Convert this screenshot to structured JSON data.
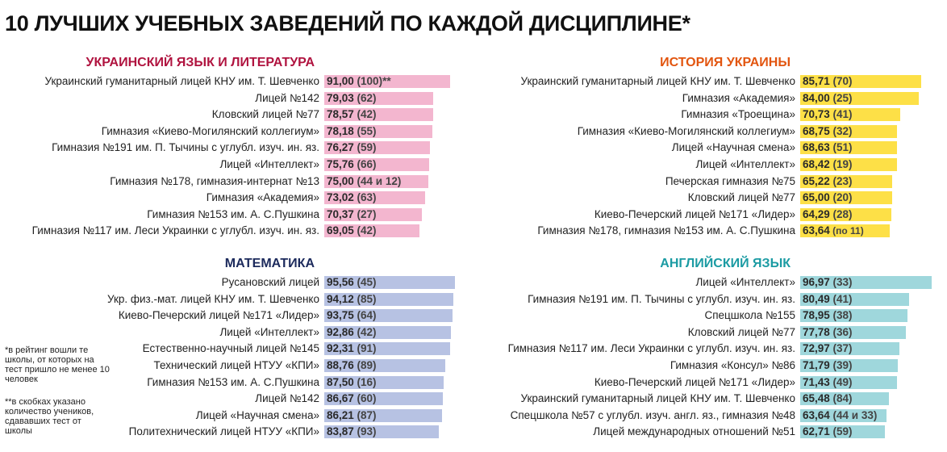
{
  "title": "10 ЛУЧШИХ УЧЕБНЫХ ЗАВЕДЕНИЙ ПО КАЖДОЙ ДИСЦИПЛИНЕ*",
  "footnotes": [
    "*в рейтинг вошли те школы, от которых на тест пришло не менее 10 человек",
    "**в скобках указано количество учеников, сдававших тест от школы"
  ],
  "chart_data": [
    {
      "type": "bar",
      "title": "УКРАИНСКИЙ ЯЗЫК И ЛИТЕРАТУРА",
      "color": "#f3b6cf",
      "title_color": "#b0133f",
      "categories": [
        "Украинский гуманитарный лицей КНУ им. Т. Шевченко",
        "Лицей №142",
        "Кловский лицей №77",
        "Гимназия «Киево-Могилянский коллегиум»",
        "Гимназия №191 им. П. Тычины с углубл. изуч. ин. яз.",
        "Лицей «Интеллект»",
        "Гимназия №178, гимназия-интернат №13",
        "Гимназия «Академия»",
        "Гимназия №153 им. А. С.Пушкина",
        "Гимназия №117 им. Леси Украинки с углубл. изуч. ин. яз."
      ],
      "values": [
        91.0,
        79.03,
        78.57,
        78.18,
        76.27,
        75.76,
        75.0,
        73.02,
        70.37,
        69.05
      ],
      "value_labels": [
        "91,00",
        "79,03",
        "78,57",
        "78,18",
        "76,27",
        "75,76",
        "75,00",
        "73,02",
        "70,37",
        "69,05"
      ],
      "counts": [
        "(100)**",
        "(62)",
        "(42)",
        "(55)",
        "(59)",
        "(66)",
        "(44 и 12)",
        "(63)",
        "(27)",
        "(42)"
      ]
    },
    {
      "type": "bar",
      "title": "ИСТОРИЯ УКРАИНЫ",
      "color": "#fde047",
      "title_color": "#e2550f",
      "categories": [
        "Украинский гуманитарный лицей КНУ им. Т. Шевченко",
        "Гимназия «Академия»",
        "Гимназия «Троещина»",
        "Гимназия «Киево-Могилянский коллегиум»",
        "Лицей «Научная смена»",
        "Лицей «Интеллект»",
        "Печерская гимназия №75",
        "Кловский лицей №77",
        "Киево-Печерский лицей №171 «Лидер»",
        "Гимназия №178, гимназия №153 им. А. С.Пушкина"
      ],
      "values": [
        85.71,
        84.0,
        70.73,
        68.75,
        68.63,
        68.42,
        65.22,
        65.0,
        64.29,
        63.64
      ],
      "value_labels": [
        "85,71",
        "84,00",
        "70,73",
        "68,75",
        "68,63",
        "68,42",
        "65,22",
        "65,00",
        "64,29",
        "63,64"
      ],
      "counts": [
        "(70)",
        "(25)",
        "(41)",
        "(32)",
        "(51)",
        "(19)",
        "(23)",
        "(20)",
        "(28)",
        "(по 11)"
      ]
    },
    {
      "type": "bar",
      "title": "МАТЕМАТИКА",
      "color": "#b7c2e3",
      "title_color": "#1c2a5c",
      "categories": [
        "Русановский лицей",
        "Укр. физ.-мат. лицей КНУ им. Т. Шевченко",
        "Киево-Печерский лицей №171 «Лидер»",
        "Лицей «Интеллект»",
        "Естественно-научный лицей №145",
        "Технический лицей НТУУ «КПИ»",
        "Гимназия №153 им. А. С.Пушкина",
        "Лицей №142",
        "Лицей «Научная смена»",
        "Политехнический лицей НТУУ «КПИ»"
      ],
      "values": [
        95.56,
        94.12,
        93.75,
        92.86,
        92.31,
        88.76,
        87.5,
        86.67,
        86.21,
        83.87
      ],
      "value_labels": [
        "95,56",
        "94,12",
        "93,75",
        "92,86",
        "92,31",
        "88,76",
        "87,50",
        "86,67",
        "86,21",
        "83,87"
      ],
      "counts": [
        "(45)",
        "(85)",
        "(64)",
        "(42)",
        "(91)",
        "(89)",
        "(16)",
        "(60)",
        "(87)",
        "(93)"
      ]
    },
    {
      "type": "bar",
      "title": "АНГЛИЙСКИЙ ЯЗЫК",
      "color": "#9fd7dc",
      "title_color": "#1b9ba3",
      "categories": [
        "Лицей «Интеллект»",
        "Гимназия №191 им. П. Тычины с углубл. изуч. ин. яз.",
        "Спецшкола №155",
        "Кловский лицей №77",
        "Гимназия №117 им. Леси Украинки с углубл. изуч. ин. яз.",
        "Гимназия «Консул» №86",
        "Киево-Печерский лицей №171 «Лидер»",
        "Украинский гуманитарный лицей КНУ им. Т. Шевченко",
        "Спецшкола №57 с углубл. изуч. англ. яз., гимназия №48",
        "Лицей международных отношений №51"
      ],
      "values": [
        96.97,
        80.49,
        78.95,
        77.78,
        72.97,
        71.79,
        71.43,
        65.48,
        63.64,
        62.71
      ],
      "value_labels": [
        "96,97",
        "80,49",
        "78,95",
        "77,78",
        "72,97",
        "71,79",
        "71,43",
        "65,48",
        "63,64",
        "62,71"
      ],
      "counts": [
        "(33)",
        "(41)",
        "(38)",
        "(36)",
        "(37)",
        "(39)",
        "(49)",
        "(84)",
        "(44 и 33)",
        "(59)"
      ]
    }
  ]
}
